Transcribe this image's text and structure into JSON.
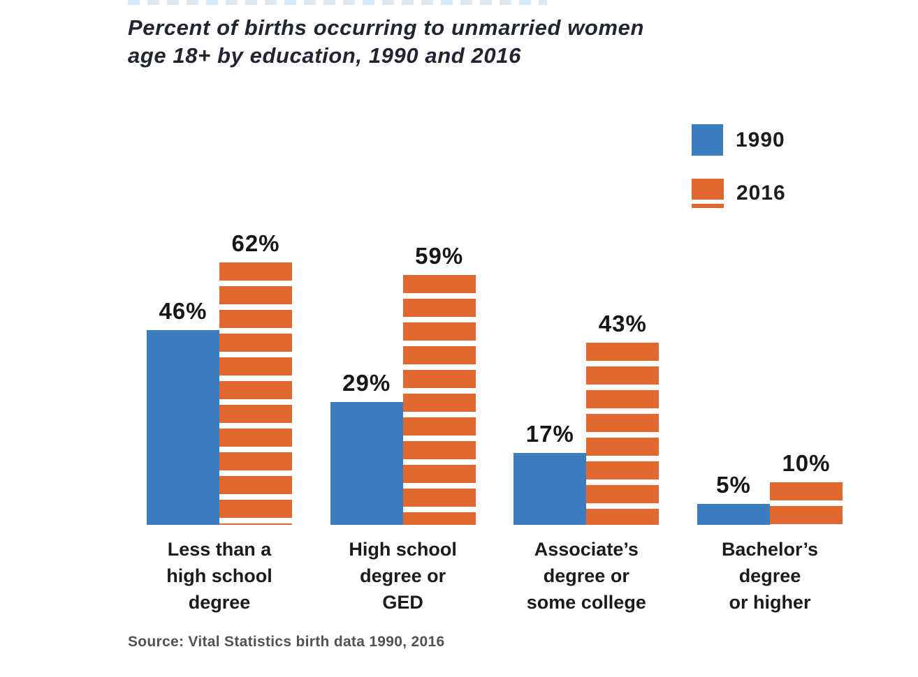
{
  "subtitle": {
    "line1": "Percent of births occurring to unmarried women",
    "line2": "age 18+ by education, 1990 and 2016"
  },
  "legend": {
    "items": [
      {
        "label": "1990",
        "color": "#3a7cbd",
        "style": "solid"
      },
      {
        "label": "2016",
        "color": "#e0672e",
        "style": "striped"
      }
    ]
  },
  "source": "Source: Vital Statistics birth data 1990, 2016",
  "colors": {
    "blue": "#3a7cbd",
    "orange": "#e0672e",
    "fragment": "#dce8f4"
  },
  "chart_data": {
    "type": "bar",
    "title": "Percent of births occurring to unmarried women age 18+ by education, 1990 and 2016",
    "categories": [
      "Less than a high school degree",
      "High school degree or GED",
      "Associate’s degree or some college",
      "Bachelor’s degree or higher"
    ],
    "categories_lines": [
      [
        "Less than a",
        "high school",
        "degree"
      ],
      [
        "High school",
        "degree or",
        "GED"
      ],
      [
        "Associate’s",
        "degree or",
        "some college"
      ],
      [
        "Bachelor’s",
        "degree",
        "or higher"
      ]
    ],
    "series": [
      {
        "name": "1990",
        "values": [
          46,
          29,
          17,
          5
        ]
      },
      {
        "name": "2016",
        "values": [
          62,
          59,
          43,
          10
        ]
      }
    ],
    "unit": "%",
    "value_labels": [
      [
        "46%",
        "29%",
        "17%",
        "5%"
      ],
      [
        "62%",
        "59%",
        "43%",
        "10%"
      ]
    ],
    "ylim": [
      0,
      65
    ],
    "grid": false,
    "legend_position": "top-right",
    "xlabel": "",
    "ylabel": ""
  }
}
